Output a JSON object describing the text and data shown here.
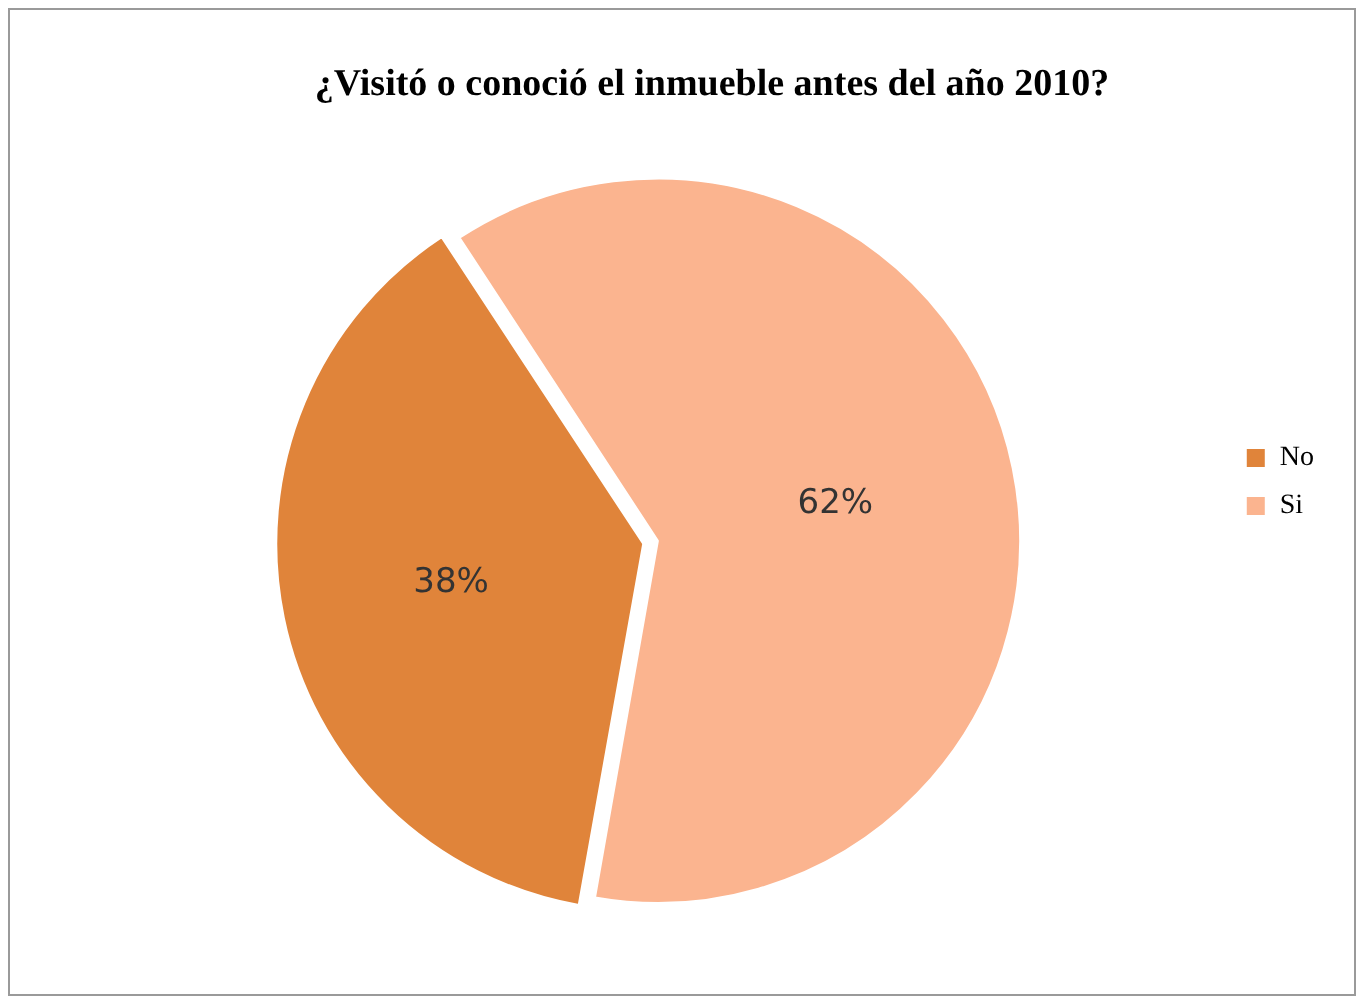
{
  "chart_data": {
    "type": "pie",
    "title": "¿Visitó o conoció el inmueble antes del año 2010?",
    "categories": [
      "No",
      "Si"
    ],
    "values": [
      38,
      62
    ],
    "colors": [
      "#e0843a",
      "#fbb48f"
    ],
    "value_labels": [
      "38%",
      "62%"
    ],
    "legend": "right"
  }
}
